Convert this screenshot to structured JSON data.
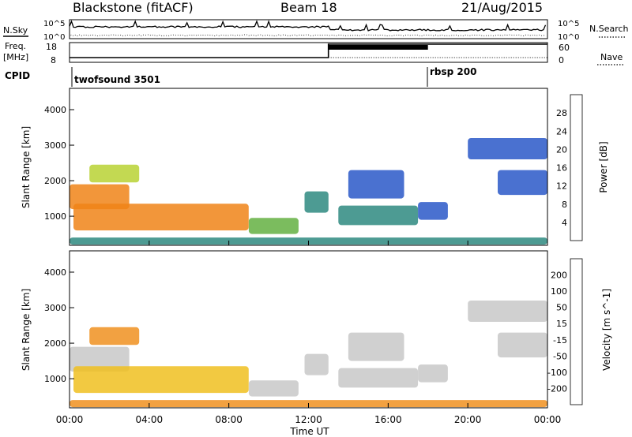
{
  "header": {
    "station": "Blackstone (fitACF)",
    "beam": "Beam 18",
    "date": "21/Aug/2015"
  },
  "summary": {
    "nsky_label": "N.Sky",
    "nsearch_label": "N.Search",
    "scale_top": "10^5",
    "scale_bottom": "10^0",
    "freq_label_1": "Freq.",
    "freq_label_2": "[MHz]",
    "freq_ticks": [
      "18",
      "8"
    ],
    "nave_label": "Nave",
    "nave_ticks": [
      "60",
      "0"
    ],
    "cpid_label": "CPID",
    "cpid_segments": [
      {
        "name": "twofsound 3501",
        "start_hour": 0,
        "end_hour": 18
      },
      {
        "name": "rbsp 200",
        "start_hour": 18,
        "end_hour": 24
      }
    ]
  },
  "chart_data": [
    {
      "type": "heatmap",
      "quantity": "Power",
      "colorbar_label": "Power [dB]",
      "colorbar_ticks": [
        "28",
        "24",
        "20",
        "16",
        "12",
        "8",
        "4"
      ],
      "colors": [
        "#0022ee",
        "#2a58c8",
        "#2e8a80",
        "#64b042",
        "#b8d234",
        "#f0c018",
        "#f08418",
        "#ea3a14",
        "#e01010"
      ],
      "ylabel": "Slant Range [km]",
      "yticks": [
        "1000",
        "2000",
        "3000",
        "4000"
      ],
      "ylim": [
        180,
        4600
      ],
      "xlim": [
        0,
        24
      ],
      "echo_regions": [
        {
          "t0": 0.0,
          "t1": 3.0,
          "r0": 1200,
          "r1": 1900,
          "level": 0.7
        },
        {
          "t0": 1.0,
          "t1": 3.5,
          "r0": 1950,
          "r1": 2450,
          "level": 0.45
        },
        {
          "t0": 0.2,
          "t1": 9.0,
          "r0": 600,
          "r1": 1350,
          "level": 0.75
        },
        {
          "t0": 9.0,
          "t1": 11.5,
          "r0": 500,
          "r1": 950,
          "level": 0.4
        },
        {
          "t0": 11.8,
          "t1": 13.0,
          "r0": 1100,
          "r1": 1700,
          "level": 0.3
        },
        {
          "t0": 13.5,
          "t1": 17.5,
          "r0": 750,
          "r1": 1300,
          "level": 0.2
        },
        {
          "t0": 17.5,
          "t1": 19.0,
          "r0": 900,
          "r1": 1400,
          "level": 0.15
        },
        {
          "t0": 20.0,
          "t1": 24.0,
          "r0": 2600,
          "r1": 3200,
          "level": 0.15
        },
        {
          "t0": 21.5,
          "t1": 24.0,
          "r0": 1600,
          "r1": 2300,
          "level": 0.1
        },
        {
          "t0": 14.0,
          "t1": 16.8,
          "r0": 1500,
          "r1": 2300,
          "level": 0.12
        },
        {
          "t0": 0.0,
          "t1": 24.0,
          "r0": 200,
          "r1": 400,
          "level": 0.25
        }
      ]
    },
    {
      "type": "heatmap",
      "quantity": "Velocity",
      "colorbar_label": "Velocity [m s^-1]",
      "colorbar_ticks": [
        "200",
        "100",
        "50",
        "15",
        "-15",
        "-50",
        "-100",
        "-200"
      ],
      "colors": [
        "#2a44c0",
        "#2e6aa8",
        "#3a9a56",
        "#6cc83c",
        "#c8c8c8",
        "#f0c020",
        "#f09020",
        "#ea5a18",
        "#e01818"
      ],
      "ylabel": "Slant Range [km]",
      "yticks": [
        "1000",
        "2000",
        "3000",
        "4000"
      ],
      "ylim": [
        180,
        4600
      ],
      "xlim": [
        0,
        24
      ],
      "echo_regions": [
        {
          "t0": 0.0,
          "t1": 3.0,
          "r0": 1200,
          "r1": 1900,
          "level": 0.5
        },
        {
          "t0": 1.0,
          "t1": 3.5,
          "r0": 1950,
          "r1": 2450,
          "level": 0.7
        },
        {
          "t0": 0.2,
          "t1": 9.0,
          "r0": 600,
          "r1": 1350,
          "level": 0.6
        },
        {
          "t0": 9.0,
          "t1": 11.5,
          "r0": 500,
          "r1": 950,
          "level": 0.5
        },
        {
          "t0": 11.8,
          "t1": 13.0,
          "r0": 1100,
          "r1": 1700,
          "level": 0.5
        },
        {
          "t0": 13.5,
          "t1": 17.5,
          "r0": 750,
          "r1": 1300,
          "level": 0.5
        },
        {
          "t0": 17.5,
          "t1": 19.0,
          "r0": 900,
          "r1": 1400,
          "level": 0.5
        },
        {
          "t0": 20.0,
          "t1": 24.0,
          "r0": 2600,
          "r1": 3200,
          "level": 0.5
        },
        {
          "t0": 21.5,
          "t1": 24.0,
          "r0": 1600,
          "r1": 2300,
          "level": 0.5
        },
        {
          "t0": 14.0,
          "t1": 16.8,
          "r0": 1500,
          "r1": 2300,
          "level": 0.5
        },
        {
          "t0": 0.0,
          "t1": 24.0,
          "r0": 200,
          "r1": 400,
          "level": 0.7
        }
      ]
    }
  ],
  "xaxis": {
    "ticks": [
      "00:00",
      "04:00",
      "08:00",
      "12:00",
      "16:00",
      "20:00",
      "00:00"
    ],
    "tick_hours": [
      0,
      4,
      8,
      12,
      16,
      20,
      24
    ],
    "label": "Time UT"
  }
}
